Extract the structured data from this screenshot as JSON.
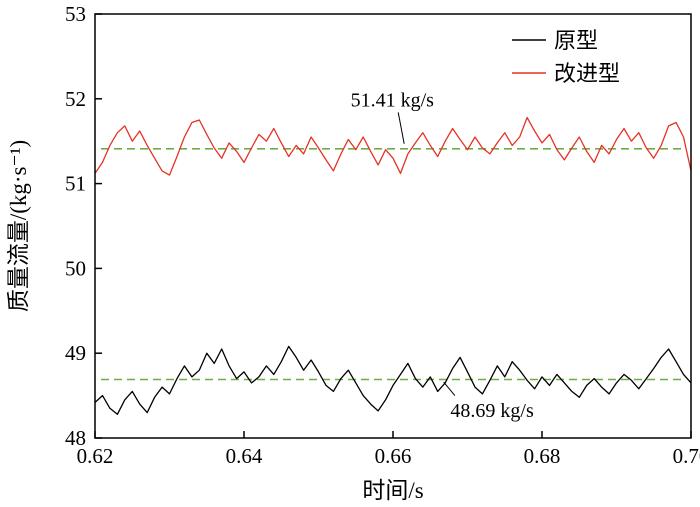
{
  "figure": {
    "background": "#ffffff",
    "frame_color": "#000000"
  },
  "chart_data": {
    "type": "line",
    "title": "",
    "xlabel": "时间/s",
    "ylabel": "质量流量/(kg·s⁻¹)",
    "xlim": [
      0.62,
      0.7
    ],
    "ylim": [
      48,
      53
    ],
    "xticks": [
      0.62,
      0.64,
      0.66,
      0.68,
      0.7
    ],
    "yticks": [
      48,
      49,
      50,
      51,
      52,
      53
    ],
    "x_start": 0.62,
    "x_step": 0.001,
    "grid": false,
    "legend_position": "top-right",
    "series": [
      {
        "name": "原型",
        "color": "#000000",
        "values": [
          48.42,
          48.5,
          48.35,
          48.28,
          48.45,
          48.55,
          48.4,
          48.3,
          48.48,
          48.6,
          48.52,
          48.7,
          48.85,
          48.72,
          48.8,
          49.0,
          48.88,
          49.05,
          48.85,
          48.7,
          48.78,
          48.65,
          48.72,
          48.85,
          48.75,
          48.9,
          49.08,
          48.95,
          48.8,
          48.92,
          48.78,
          48.62,
          48.55,
          48.7,
          48.8,
          48.65,
          48.5,
          48.4,
          48.32,
          48.45,
          48.62,
          48.75,
          48.88,
          48.7,
          48.6,
          48.72,
          48.55,
          48.65,
          48.82,
          48.95,
          48.78,
          48.6,
          48.52,
          48.68,
          48.85,
          48.72,
          48.9,
          48.8,
          48.68,
          48.58,
          48.72,
          48.62,
          48.75,
          48.65,
          48.55,
          48.48,
          48.62,
          48.7,
          48.6,
          48.52,
          48.65,
          48.75,
          48.68,
          48.58,
          48.7,
          48.82,
          48.95,
          49.05,
          48.9,
          48.75,
          48.65
        ]
      },
      {
        "name": "改进型",
        "color": "#e53227",
        "values": [
          51.12,
          51.25,
          51.45,
          51.6,
          51.68,
          51.5,
          51.62,
          51.45,
          51.3,
          51.15,
          51.1,
          51.32,
          51.55,
          51.72,
          51.75,
          51.58,
          51.42,
          51.3,
          51.48,
          51.38,
          51.25,
          51.42,
          51.58,
          51.5,
          51.65,
          51.48,
          51.32,
          51.45,
          51.35,
          51.55,
          51.42,
          51.28,
          51.15,
          51.35,
          51.52,
          51.4,
          51.55,
          51.38,
          51.22,
          51.4,
          51.3,
          51.12,
          51.35,
          51.48,
          51.6,
          51.45,
          51.32,
          51.5,
          51.65,
          51.52,
          51.4,
          51.55,
          51.42,
          51.35,
          51.48,
          51.6,
          51.45,
          51.55,
          51.78,
          51.62,
          51.48,
          51.58,
          51.4,
          51.28,
          51.42,
          51.55,
          51.38,
          51.25,
          51.45,
          51.35,
          51.52,
          51.65,
          51.5,
          51.6,
          51.42,
          51.3,
          51.45,
          51.68,
          51.72,
          51.55,
          51.15
        ]
      }
    ],
    "mean_lines": [
      {
        "value": 51.41,
        "color": "#6fae45",
        "series": "改进型"
      },
      {
        "value": 48.69,
        "color": "#6fae45",
        "series": "原型"
      }
    ],
    "annotations": [
      {
        "text": "51.41 kg/s",
        "x": 0.6599,
        "y": 51.99,
        "leader": {
          "x1": 0.6607,
          "y1": 51.84,
          "x2": 0.6615,
          "y2": 51.47
        }
      },
      {
        "text": "48.69 kg/s",
        "x": 0.6733,
        "y": 48.33,
        "leader": {
          "x1": 0.6683,
          "y1": 48.5,
          "x2": 0.6668,
          "y2": 48.66
        }
      }
    ],
    "legend": [
      {
        "label": "原型",
        "color": "#000000"
      },
      {
        "label": "改进型",
        "color": "#e53227"
      }
    ]
  }
}
